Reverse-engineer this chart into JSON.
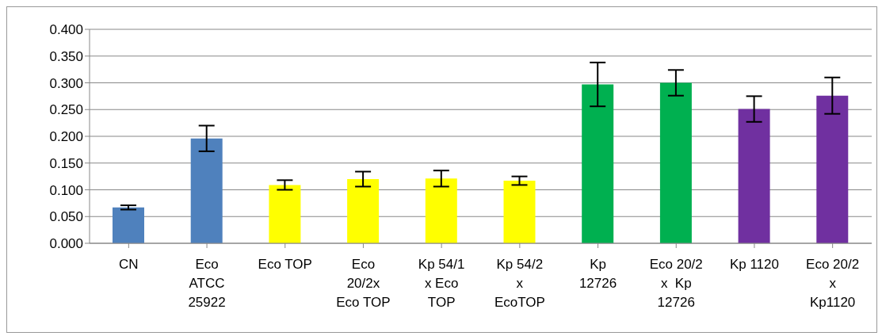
{
  "chart_data": {
    "type": "bar",
    "categories": [
      "CN",
      "Eco\nATCC\n25922",
      "Eco TOP",
      "Eco\n20/2x\nEco TOP",
      "Kp 54/1\nx Eco\nTOP",
      "Kp 54/2\nx\nEcoTOP",
      "Kp\n12726",
      "Eco 20/2\nx  Kp\n12726",
      "Kp 1120",
      "Eco 20/2\nx\nKp1120"
    ],
    "values": [
      0.067,
      0.196,
      0.109,
      0.12,
      0.121,
      0.117,
      0.297,
      0.3,
      0.251,
      0.276
    ],
    "errors": [
      0.004,
      0.024,
      0.009,
      0.014,
      0.015,
      0.008,
      0.041,
      0.024,
      0.024,
      0.034
    ],
    "colors": [
      "#4f81bd",
      "#4f81bd",
      "#ffff00",
      "#ffff00",
      "#ffff00",
      "#ffff00",
      "#00b050",
      "#00b050",
      "#7030a0",
      "#7030a0"
    ],
    "ylim": [
      0,
      0.4
    ],
    "yticks": [
      {
        "value": 0,
        "label": "0.000"
      },
      {
        "value": 0.05,
        "label": "0.050"
      },
      {
        "value": 0.1,
        "label": "0.100"
      },
      {
        "value": 0.15,
        "label": "0.150"
      },
      {
        "value": 0.2,
        "label": "0.200"
      },
      {
        "value": 0.25,
        "label": "0.250"
      },
      {
        "value": 0.3,
        "label": "0.300"
      },
      {
        "value": 0.35,
        "label": "0.350"
      },
      {
        "value": 0.4,
        "label": "0.400"
      }
    ],
    "grid": "y"
  }
}
